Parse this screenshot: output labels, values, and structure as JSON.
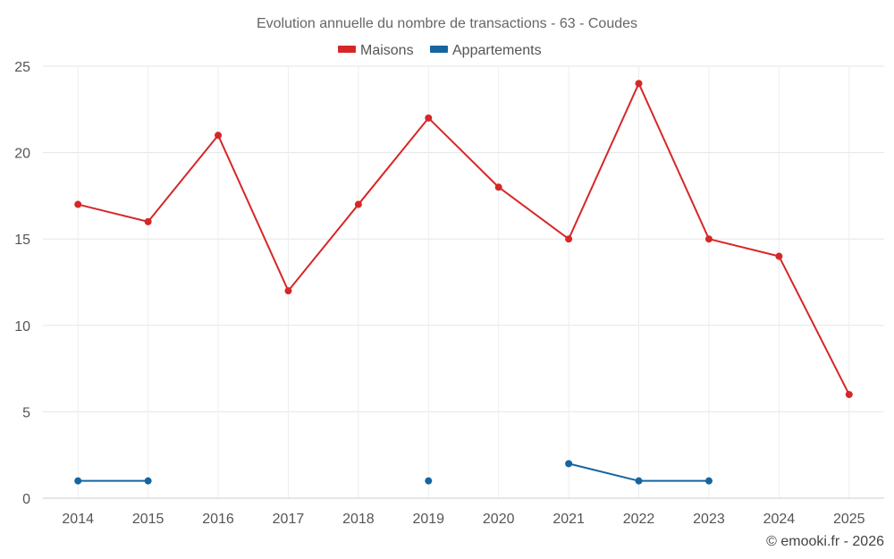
{
  "chart_data": {
    "type": "line",
    "title": "Evolution annuelle du nombre de transactions - 63 - Coudes",
    "categories": [
      "2014",
      "2015",
      "2016",
      "2017",
      "2018",
      "2019",
      "2020",
      "2021",
      "2022",
      "2023",
      "2024",
      "2025"
    ],
    "ylim": [
      0,
      25
    ],
    "yticks": [
      0,
      5,
      10,
      15,
      20,
      25
    ],
    "grid": true,
    "legend_position": "top-center",
    "series": [
      {
        "name": "Maisons",
        "color": "#d62728",
        "values": [
          17,
          16,
          21,
          12,
          17,
          22,
          18,
          15,
          24,
          15,
          14,
          6
        ]
      },
      {
        "name": "Appartements",
        "color": "#1565a0",
        "values": [
          1,
          1,
          null,
          null,
          null,
          1,
          null,
          2,
          1,
          1,
          null,
          null
        ]
      }
    ]
  },
  "credit": "© emooki.fr - 2026"
}
